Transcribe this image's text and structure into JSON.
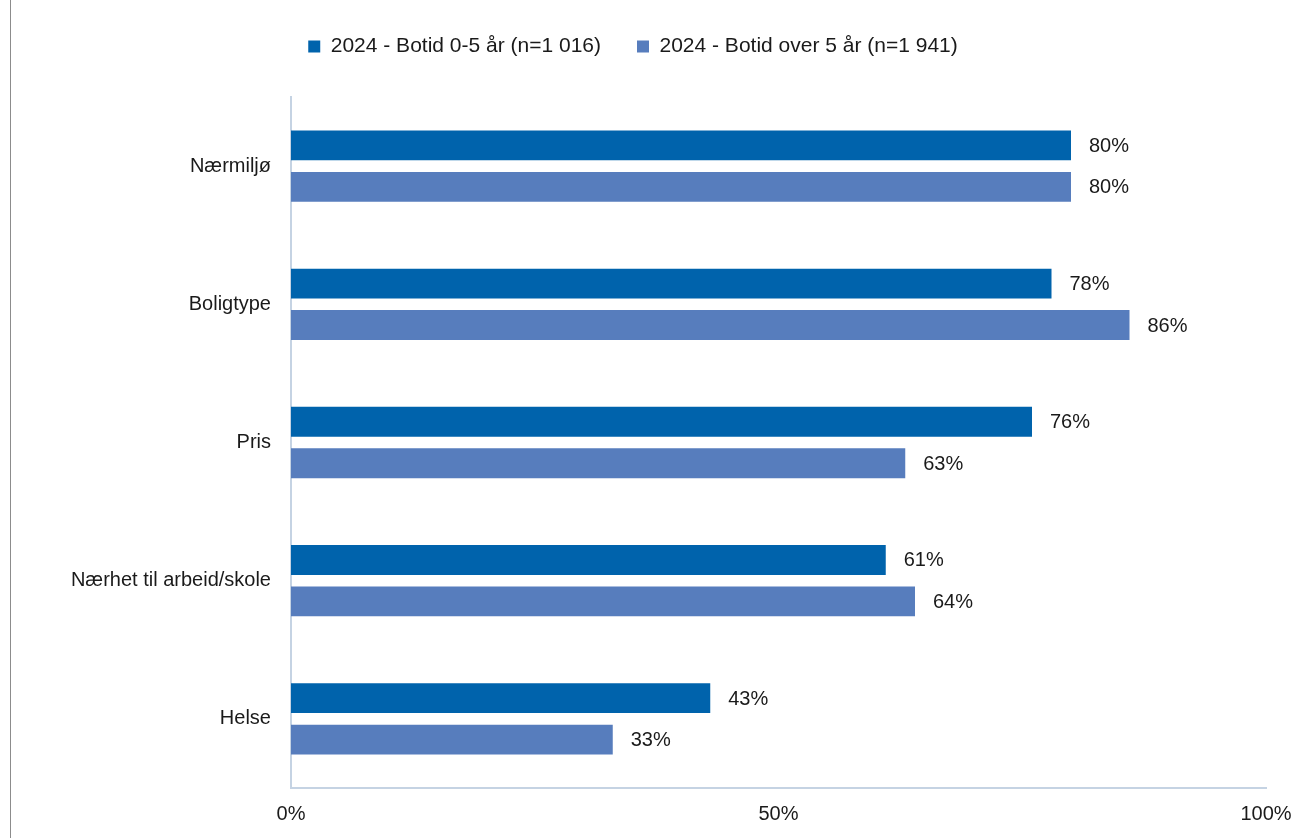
{
  "chart_data": {
    "type": "bar",
    "orientation": "horizontal",
    "categories": [
      "Nærmiljø",
      "Boligtype",
      "Pris",
      "Nærhet til arbeid/skole",
      "Helse"
    ],
    "series": [
      {
        "name": "2024 - Botid 0-5 år (n=1 016)",
        "color": "#0063ac",
        "values": [
          80,
          78,
          76,
          61,
          43
        ],
        "value_labels": [
          "80%",
          "78%",
          "76%",
          "61%",
          "43%"
        ]
      },
      {
        "name": "2024 - Botid over 5 år (n=1 941)",
        "color": "#577dbd",
        "values": [
          80,
          86,
          63,
          64,
          33
        ],
        "value_labels": [
          "80%",
          "86%",
          "63%",
          "64%",
          "33%"
        ]
      }
    ],
    "xlim": [
      0,
      100
    ],
    "xticks": [
      {
        "value": 0,
        "label": "0%"
      },
      {
        "value": 50,
        "label": "50%"
      },
      {
        "value": 100,
        "label": "100%"
      }
    ],
    "grid": false,
    "legend": "top"
  }
}
